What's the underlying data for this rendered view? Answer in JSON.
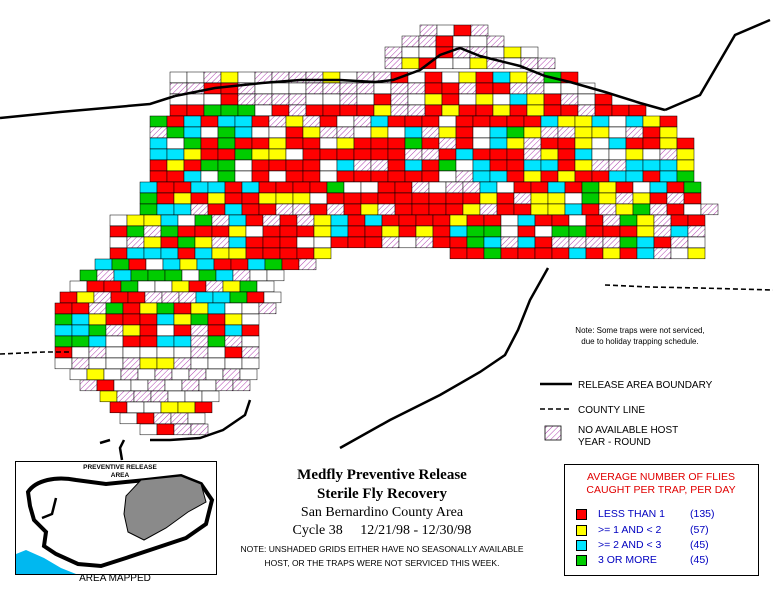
{
  "title": {
    "line1": "Medfly Preventive Release",
    "line2": "Sterile Fly Recovery",
    "area": "San Bernardino County Area",
    "cycle": "Cycle 38     12/21/98 - 12/30/98",
    "note1": "NOTE: UNSHADED GRIDS EITHER HAVE NO SEASONALLY AVAILABLE",
    "note2": "HOST, OR THE TRAPS WERE NOT SERVICED THIS WEEK."
  },
  "inset": {
    "title_line1": "PREVENTIVE RELEASE",
    "title_line2": "AREA",
    "caption": "AREA MAPPED"
  },
  "map_note": {
    "line1": "Note: Some traps were not serviced,",
    "line2": "due to holiday trapping schedule."
  },
  "map_legend": {
    "release_boundary": "RELEASE AREA BOUNDARY",
    "county_line": "COUNTY LINE",
    "no_host_line1": "NO AVAILABLE HOST",
    "no_host_line2": "YEAR - ROUND"
  },
  "count_legend": {
    "heading_line1": "AVERAGE NUMBER OF FLIES",
    "heading_line2": "CAUGHT PER TRAP, PER DAY",
    "items": [
      {
        "label": "LESS THAN 1",
        "count": "(135)",
        "color": "#ff0000"
      },
      {
        "label": ">= 1 AND < 2",
        "count": "(57)",
        "color": "#ffff00"
      },
      {
        "label": ">= 2 AND < 3",
        "count": "(45)",
        "color": "#00e5ff"
      },
      {
        "label": "3 OR MORE",
        "count": "(45)",
        "color": "#00cc00"
      }
    ]
  },
  "colors": {
    "red": "#ff0000",
    "yellow": "#ffff00",
    "cyan": "#00e5ff",
    "green": "#00cc00",
    "hatch": "#b040b0"
  }
}
